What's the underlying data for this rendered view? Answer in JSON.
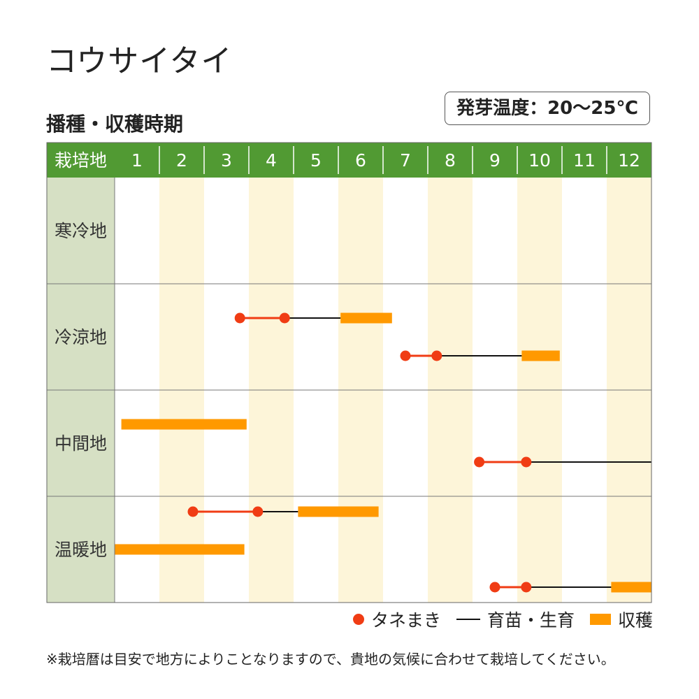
{
  "title": "コウサイタイ",
  "subtitle": "播種・収穫時期",
  "temperature_note": "発芽温度：20〜25℃",
  "footnote": "※栽培暦は目安で地方によりことなりますので、貴地の気候に合わせて栽培してください。",
  "colors": {
    "header_green": "#519a33",
    "region_column": "#d6e0c4",
    "band_highlight": "#fdf5d9",
    "sowing": "#f03c14",
    "harvest": "#ff9900",
    "growing": "#111111"
  },
  "legend": {
    "sowing": "タネまき",
    "growing": "育苗・生育",
    "harvest": "収穫"
  },
  "chart_data": {
    "type": "gantt",
    "header_label": "栽培地",
    "months": [
      "1",
      "2",
      "3",
      "4",
      "5",
      "6",
      "7",
      "8",
      "9",
      "10",
      "11",
      "12"
    ],
    "x_range": [
      1,
      13
    ],
    "regions": [
      {
        "name": "寒冷地",
        "rows": []
      },
      {
        "name": "冷涼地",
        "rows": [
          {
            "sow_start": 3.8,
            "sow_end": 4.8,
            "grow_end": 6.05,
            "harvest_end": 7.2
          },
          {
            "sow_start": 7.5,
            "sow_end": 8.2,
            "grow_end": 10.1,
            "harvest_end": 10.95
          }
        ]
      },
      {
        "name": "中間地",
        "rows": [
          {
            "grow_start": 1.0,
            "harvest_start": 1.15,
            "harvest_end": 3.95
          },
          {
            "sow_start": 9.15,
            "sow_end": 10.2,
            "grow_end": 13.0
          }
        ]
      },
      {
        "name": "温暖地",
        "rows": [
          {
            "sow_start": 2.75,
            "sow_end": 4.2,
            "grow_end": 5.1,
            "harvest_end": 6.9
          },
          {
            "harvest_start": 1.0,
            "harvest_end": 3.9
          },
          {
            "sow_start": 9.5,
            "sow_end": 10.2,
            "grow_end": 12.1,
            "harvest_end": 13.0
          }
        ]
      }
    ]
  }
}
